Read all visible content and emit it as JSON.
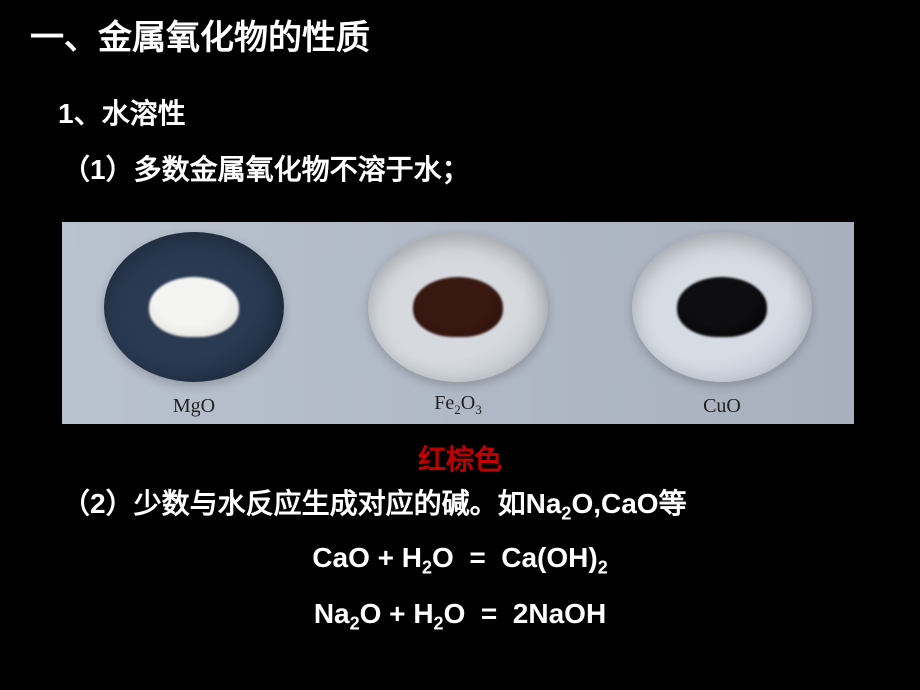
{
  "title": "一、金属氧化物的性质",
  "sub1_num": "1",
  "sub1_text": "、水溶性",
  "point1_paren_open": "（",
  "point1_num": "1",
  "point1_paren_close": "）",
  "point1_text": "多数金属氧化物不溶于水；",
  "strip": {
    "bg_gradient_left": "#b9c2cf",
    "bg_gradient_right": "#a8b0be",
    "panels": [
      {
        "label_html": "MgO",
        "dish_color": "#2a3a52",
        "dish_shadow": "#1a2638",
        "powder_color": "#f4f4f2",
        "powder_shadow": "#d8d8d4"
      },
      {
        "label_html": "Fe<sub>2</sub>O<sub>3</sub>",
        "dish_color": "#d6dadf",
        "dish_shadow": "#b4bac2",
        "powder_color": "#3a1812",
        "powder_shadow": "#2a0e08"
      },
      {
        "label_html": "CuO",
        "dish_color": "#d6dce4",
        "dish_shadow": "#b4bac6",
        "powder_color": "#0e0e10",
        "powder_shadow": "#000000"
      }
    ]
  },
  "red_label": "红棕色",
  "red_color": "#c00000",
  "point2_paren_open": "（",
  "point2_num": "2",
  "point2_paren_close": "）",
  "point2_text_a": "少数与水反应生成对应的碱。如",
  "point2_formula1": "Na<sub>2</sub>O",
  "point2_comma": ",",
  "point2_formula2": "CaO",
  "point2_text_b": "等",
  "eq1": "CaO + H<sub>2</sub>O&nbsp;&nbsp;=&nbsp;&nbsp;Ca(OH)<sub>2</sub>",
  "eq2": "Na<sub>2</sub>O + H<sub>2</sub>O&nbsp;&nbsp;=&nbsp;&nbsp;2NaOH"
}
